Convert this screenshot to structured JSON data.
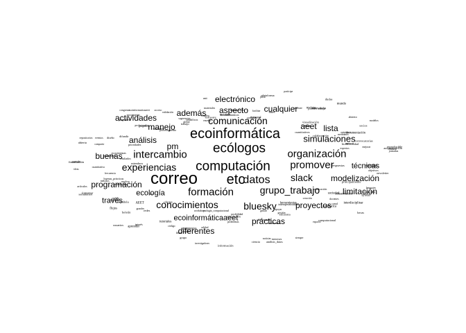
{
  "cloud": {
    "text_color": "#000000",
    "background": "#ffffff",
    "words": [
      {
        "text": "correo",
        "weight": 100
      },
      {
        "text": "etc",
        "weight": 92
      },
      {
        "text": "computación",
        "weight": 90
      },
      {
        "text": "ecoinformática",
        "weight": 88
      },
      {
        "text": "ecólogos",
        "weight": 84
      },
      {
        "text": "datos",
        "weight": 68
      },
      {
        "text": "organización",
        "weight": 64
      },
      {
        "text": "grupo_trabajo",
        "weight": 64
      },
      {
        "text": "promover",
        "weight": 62
      },
      {
        "text": "intercambio",
        "weight": 62
      },
      {
        "text": "comunicación",
        "weight": 60
      },
      {
        "text": "slack",
        "weight": 60
      },
      {
        "text": "formación",
        "weight": 60
      },
      {
        "text": "experiencias",
        "weight": 58
      },
      {
        "text": "conocimientos",
        "weight": 56
      },
      {
        "text": "bluesky",
        "weight": 56
      },
      {
        "text": "simulaciones",
        "weight": 48
      },
      {
        "text": "modelización",
        "weight": 48
      },
      {
        "text": "limitación",
        "weight": 48
      },
      {
        "text": "proyectos",
        "weight": 48
      },
      {
        "text": "prácticas",
        "weight": 48
      },
      {
        "text": "diferentes",
        "weight": 48
      },
      {
        "text": "programación",
        "weight": 46
      },
      {
        "text": "buenas",
        "weight": 46
      },
      {
        "text": "además",
        "weight": 46
      },
      {
        "text": "aspecto",
        "weight": 46
      },
      {
        "text": "cualquier",
        "weight": 46
      },
      {
        "text": "electrónico",
        "weight": 46
      },
      {
        "text": "actividades",
        "weight": 46
      },
      {
        "text": "manejo",
        "weight": 46
      },
      {
        "text": "análisis",
        "weight": 46
      },
      {
        "text": "pm",
        "weight": 46
      },
      {
        "text": "aeet",
        "weight": 46
      },
      {
        "text": "lista",
        "weight": 46
      },
      {
        "text": "técnicas",
        "weight": 44
      },
      {
        "text": "ecología",
        "weight": 44
      },
      {
        "text": "través",
        "weight": 44
      },
      {
        "text": "ecoinformáticaaeet",
        "weight": 44
      },
      {
        "text": "compartidos",
        "weight": 6
      },
      {
        "text": "pueden",
        "weight": 6
      },
      {
        "text": "participe",
        "weight": 6
      },
      {
        "text": "siempre",
        "weight": 6
      },
      {
        "text": "diseño",
        "weight": 6
      },
      {
        "text": "nuevos",
        "weight": 6
      },
      {
        "text": "workshops",
        "weight": 6
      },
      {
        "text": "unit",
        "weight": 6
      },
      {
        "text": "creación",
        "weight": 6
      },
      {
        "text": "ideas",
        "weight": 6
      },
      {
        "text": "trabajar",
        "weight": 6
      },
      {
        "text": "posibilidad",
        "weight": 6
      },
      {
        "text": "mantener",
        "weight": 6
      },
      {
        "text": "contacto",
        "weight": 6
      },
      {
        "text": "interés",
        "weight": 6
      },
      {
        "text": "recursos",
        "weight": 6
      },
      {
        "text": "herramientas",
        "weight": 6
      },
      {
        "text": "compartir",
        "weight": 6
      },
      {
        "text": "colaboración",
        "weight": 6
      },
      {
        "text": "investigadores",
        "weight": 6
      },
      {
        "text": "científicos",
        "weight": 6
      },
      {
        "text": "sociedad",
        "weight": 6
      },
      {
        "text": "española",
        "weight": 6
      },
      {
        "text": "terrestre",
        "weight": 6
      },
      {
        "text": "ciencia",
        "weight": 6
      },
      {
        "text": "abierta",
        "weight": 6
      },
      {
        "text": "reproducible",
        "weight": 6
      },
      {
        "text": "código",
        "weight": 6
      },
      {
        "text": "software",
        "weight": 6
      },
      {
        "text": "estadística",
        "weight": 6
      },
      {
        "text": "métodos",
        "weight": 6
      },
      {
        "text": "cuantitativos",
        "weight": 6
      },
      {
        "text": "información",
        "weight": 6
      },
      {
        "text": "geográfica",
        "weight": 6
      },
      {
        "text": "sistemas",
        "weight": 6
      },
      {
        "text": "grandes",
        "weight": 6
      },
      {
        "text": "bases",
        "weight": 6
      },
      {
        "text": "gestión",
        "weight": 6
      },
      {
        "text": "ecosistemas",
        "weight": 6
      },
      {
        "text": "biodiversidad",
        "weight": 6
      },
      {
        "text": "cambio",
        "weight": 6
      },
      {
        "text": "global",
        "weight": 6
      },
      {
        "text": "conservación",
        "weight": 6
      },
      {
        "text": "seminarios",
        "weight": 6
      },
      {
        "text": "cursos",
        "weight": 6
      },
      {
        "text": "reuniones",
        "weight": 6
      },
      {
        "text": "congresos",
        "weight": 6
      },
      {
        "text": "jornadas",
        "weight": 6
      },
      {
        "text": "redes",
        "weight": 6
      },
      {
        "text": "sociales",
        "weight": 6
      },
      {
        "text": "canal",
        "weight": 6
      },
      {
        "text": "miembros",
        "weight": 6
      },
      {
        "text": "socios",
        "weight": 6
      },
      {
        "text": "grupo",
        "weight": 6
      },
      {
        "text": "trabajo",
        "weight": 6
      },
      {
        "text": "objetivos",
        "weight": 6
      },
      {
        "text": "fomentar",
        "weight": 6
      },
      {
        "text": "facilitar",
        "weight": 6
      },
      {
        "text": "apoyar",
        "weight": 6
      },
      {
        "text": "difundir",
        "weight": 6
      },
      {
        "text": "mejorar",
        "weight": 6
      },
      {
        "text": "aprender",
        "weight": 6
      },
      {
        "text": "enseñar",
        "weight": 6
      },
      {
        "text": "ayudar",
        "weight": 6
      },
      {
        "text": "resolver",
        "weight": 6
      },
      {
        "text": "dudas",
        "weight": 6
      },
      {
        "text": "problemas",
        "weight": 6
      },
      {
        "text": "preguntas",
        "weight": 6
      },
      {
        "text": "respuestas",
        "weight": 6
      },
      {
        "text": "foro",
        "weight": 6
      },
      {
        "text": "plataforma",
        "weight": 6
      },
      {
        "text": "espacio",
        "weight": 6
      },
      {
        "text": "común",
        "weight": 6
      },
      {
        "text": "abierto",
        "weight": 6
      },
      {
        "text": "libre",
        "weight": 6
      },
      {
        "text": "acceso",
        "weight": 6
      },
      {
        "text": "interdisciplinar",
        "weight": 6
      },
      {
        "text": "estudiantes",
        "weight": 6
      },
      {
        "text": "jóvenes",
        "weight": 6
      },
      {
        "text": "doctorandos",
        "weight": 6
      },
      {
        "text": "profesionales",
        "weight": 6
      },
      {
        "text": "expertos",
        "weight": 6
      },
      {
        "text": "usuarios",
        "weight": 6
      },
      {
        "text": "ecoinformáticos",
        "weight": 6
      },
      {
        "text": "computacional",
        "weight": 6
      },
      {
        "text": "cuantitativa",
        "weight": 6
      },
      {
        "text": "modelos",
        "weight": 6
      },
      {
        "text": "simulación",
        "weight": 6
      },
      {
        "text": "programas",
        "weight": 6
      },
      {
        "text": "lenguajes",
        "weight": 6
      },
      {
        "text": "python",
        "weight": 6
      },
      {
        "text": "julia",
        "weight": 6
      },
      {
        "text": "github",
        "weight": 6
      },
      {
        "text": "repositorios",
        "weight": 6
      },
      {
        "text": "documentación",
        "weight": 6
      },
      {
        "text": "tutoriales",
        "weight": 6
      },
      {
        "text": "materiales",
        "weight": 6
      },
      {
        "text": "docentes",
        "weight": 6
      },
      {
        "text": "buenas_prácticas",
        "weight": 6
      },
      {
        "text": "visualización",
        "weight": 6
      },
      {
        "text": "análisis_datos",
        "weight": 6
      },
      {
        "text": "procesamiento",
        "weight": 6
      },
      {
        "text": "automatización",
        "weight": 6
      },
      {
        "text": "flujos",
        "weight": 6
      },
      {
        "text": "integración",
        "weight": 6
      },
      {
        "text": "interoperabilidad",
        "weight": 6
      },
      {
        "text": "estándares",
        "weight": 6
      },
      {
        "text": "metadatos",
        "weight": 6
      },
      {
        "text": "calidad",
        "weight": 6
      },
      {
        "text": "validación",
        "weight": 6
      },
      {
        "text": "publicación",
        "weight": 6
      },
      {
        "text": "artículos",
        "weight": 6
      },
      {
        "text": "revistas",
        "weight": 6
      },
      {
        "text": "noticias",
        "weight": 6
      },
      {
        "text": "eventos",
        "weight": 6
      },
      {
        "text": "convocatorias",
        "weight": 6
      },
      {
        "text": "ofertas",
        "weight": 6
      },
      {
        "text": "empleo",
        "weight": 6
      },
      {
        "text": "becas",
        "weight": 6
      },
      {
        "text": "financiación",
        "weight": 6
      },
      {
        "text": "mundo",
        "weight": 6
      },
      {
        "text": "ecología_computacional",
        "weight": 6
      },
      {
        "text": "ecoinformaticaaeet",
        "weight": 6
      },
      {
        "text": "newsletter",
        "weight": 6
      },
      {
        "text": "boletín",
        "weight": 6
      },
      {
        "text": "mensual",
        "weight": 6
      },
      {
        "text": "encuesta",
        "weight": 6
      },
      {
        "text": "resultados",
        "weight": 6
      },
      {
        "text": "opiniones",
        "weight": 6
      },
      {
        "text": "propuestas",
        "weight": 6
      },
      {
        "text": "sugerencias",
        "weight": 6
      },
      {
        "text": "principalmente",
        "weight": 6
      },
      {
        "text": "frecuencia",
        "weight": 6
      },
      {
        "text": "necesidades",
        "weight": 6
      },
      {
        "text": "intereses",
        "weight": 6
      },
      {
        "text": "prioridades",
        "weight": 6
      },
      {
        "text": "comunidad",
        "weight": 6
      },
      {
        "text": "AEET",
        "weight": 6
      }
    ]
  }
}
